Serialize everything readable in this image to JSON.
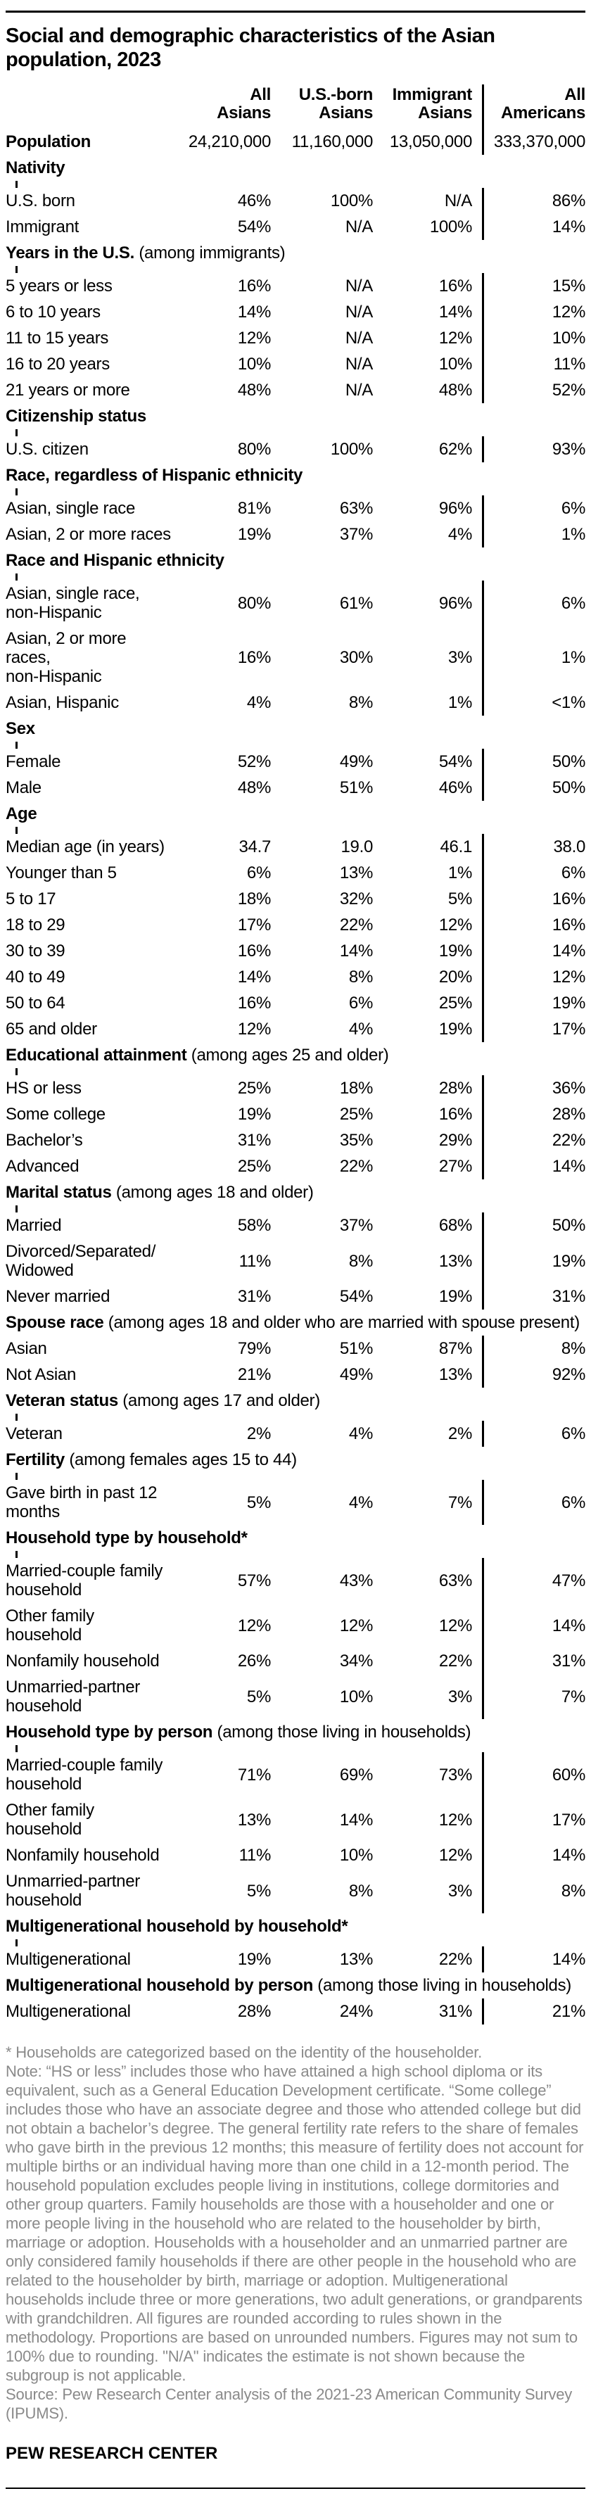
{
  "title": "Social and demographic characteristics of the Asian population, 2023",
  "colors": {
    "text": "#000000",
    "note_gray": "#8a8a8a",
    "divider": "#000000"
  },
  "chart_data": {
    "type": "table",
    "title": "Social and demographic characteristics of the Asian population, 2023",
    "columns": [
      "All Asians",
      "U.S.-born Asians",
      "Immigrant Asians",
      "All Americans"
    ],
    "column_header_lines": [
      "All\nAsians",
      "U.S.-born\nAsians",
      "Immigrant\nAsians",
      "All\nAmericans"
    ],
    "layout_hint": "fourth column separated by vertical black rule",
    "rows": [
      {
        "type": "data",
        "bold": true,
        "label": "Population",
        "values": [
          "24,210,000",
          "11,160,000",
          "13,050,000",
          "333,370,000"
        ]
      },
      {
        "type": "section",
        "label": "Nativity",
        "qualifier": ""
      },
      {
        "type": "data",
        "label": "U.S. born",
        "values": [
          "46%",
          "100%",
          "N/A",
          "86%"
        ]
      },
      {
        "type": "data",
        "label": "Immigrant",
        "values": [
          "54%",
          "N/A",
          "100%",
          "14%"
        ]
      },
      {
        "type": "section",
        "label": "Years in the U.S.",
        "qualifier": "(among immigrants)"
      },
      {
        "type": "data",
        "label": "5 years or less",
        "values": [
          "16%",
          "N/A",
          "16%",
          "15%"
        ]
      },
      {
        "type": "data",
        "label": "6 to 10 years",
        "values": [
          "14%",
          "N/A",
          "14%",
          "12%"
        ]
      },
      {
        "type": "data",
        "label": "11 to 15 years",
        "values": [
          "12%",
          "N/A",
          "12%",
          "10%"
        ]
      },
      {
        "type": "data",
        "label": "16 to 20 years",
        "values": [
          "10%",
          "N/A",
          "10%",
          "11%"
        ]
      },
      {
        "type": "data",
        "label": "21 years or more",
        "values": [
          "48%",
          "N/A",
          "48%",
          "52%"
        ]
      },
      {
        "type": "section",
        "label": "Citizenship status",
        "qualifier": ""
      },
      {
        "type": "data",
        "label": "U.S. citizen",
        "values": [
          "80%",
          "100%",
          "62%",
          "93%"
        ]
      },
      {
        "type": "section",
        "label": "Race, regardless of Hispanic ethnicity",
        "qualifier": ""
      },
      {
        "type": "data",
        "label": "Asian, single race",
        "values": [
          "81%",
          "63%",
          "96%",
          "6%"
        ]
      },
      {
        "type": "data",
        "label": "Asian, 2 or more races",
        "values": [
          "19%",
          "37%",
          "4%",
          "1%"
        ]
      },
      {
        "type": "section",
        "label": "Race and Hispanic ethnicity",
        "qualifier": ""
      },
      {
        "type": "data",
        "label": "Asian, single race,\nnon-Hispanic",
        "values": [
          "80%",
          "61%",
          "96%",
          "6%"
        ]
      },
      {
        "type": "data",
        "label": "Asian, 2 or more races,\nnon-Hispanic",
        "values": [
          "16%",
          "30%",
          "3%",
          "1%"
        ]
      },
      {
        "type": "data",
        "label": "Asian, Hispanic",
        "values": [
          "4%",
          "8%",
          "1%",
          "<1%"
        ]
      },
      {
        "type": "section",
        "label": "Sex",
        "qualifier": ""
      },
      {
        "type": "data",
        "label": "Female",
        "values": [
          "52%",
          "49%",
          "54%",
          "50%"
        ]
      },
      {
        "type": "data",
        "label": "Male",
        "values": [
          "48%",
          "51%",
          "46%",
          "50%"
        ]
      },
      {
        "type": "section",
        "label": "Age",
        "qualifier": ""
      },
      {
        "type": "data",
        "label": "Median age (in years)",
        "values": [
          "34.7",
          "19.0",
          "46.1",
          "38.0"
        ]
      },
      {
        "type": "data",
        "label": "Younger than 5",
        "values": [
          "6%",
          "13%",
          "1%",
          "6%"
        ]
      },
      {
        "type": "data",
        "label": "5 to 17",
        "values": [
          "18%",
          "32%",
          "5%",
          "16%"
        ]
      },
      {
        "type": "data",
        "label": "18 to 29",
        "values": [
          "17%",
          "22%",
          "12%",
          "16%"
        ]
      },
      {
        "type": "data",
        "label": "30 to 39",
        "values": [
          "16%",
          "14%",
          "19%",
          "14%"
        ]
      },
      {
        "type": "data",
        "label": "40 to 49",
        "values": [
          "14%",
          "8%",
          "20%",
          "12%"
        ]
      },
      {
        "type": "data",
        "label": "50 to 64",
        "values": [
          "16%",
          "6%",
          "25%",
          "19%"
        ]
      },
      {
        "type": "data",
        "label": "65 and older",
        "values": [
          "12%",
          "4%",
          "19%",
          "17%"
        ]
      },
      {
        "type": "section",
        "label": "Educational attainment",
        "qualifier": "(among ages 25 and older)"
      },
      {
        "type": "data",
        "label": "HS or less",
        "values": [
          "25%",
          "18%",
          "28%",
          "36%"
        ]
      },
      {
        "type": "data",
        "label": "Some college",
        "values": [
          "19%",
          "25%",
          "16%",
          "28%"
        ]
      },
      {
        "type": "data",
        "label": "Bachelor’s",
        "values": [
          "31%",
          "35%",
          "29%",
          "22%"
        ]
      },
      {
        "type": "data",
        "label": "Advanced",
        "values": [
          "25%",
          "22%",
          "27%",
          "14%"
        ]
      },
      {
        "type": "section",
        "label": "Marital status",
        "qualifier": "(among ages 18 and older)"
      },
      {
        "type": "data",
        "label": "Married",
        "values": [
          "58%",
          "37%",
          "68%",
          "50%"
        ]
      },
      {
        "type": "data",
        "label": "Divorced/Separated/\nWidowed",
        "values": [
          "11%",
          "8%",
          "13%",
          "19%"
        ]
      },
      {
        "type": "data",
        "label": "Never married",
        "values": [
          "31%",
          "54%",
          "19%",
          "31%"
        ]
      },
      {
        "type": "section-span",
        "label": "Spouse race",
        "qualifier": "(among ages 18 and older who are married with spouse present)"
      },
      {
        "type": "data",
        "label": "Asian",
        "values": [
          "79%",
          "51%",
          "87%",
          "8%"
        ]
      },
      {
        "type": "data",
        "label": "Not Asian",
        "values": [
          "21%",
          "49%",
          "13%",
          "92%"
        ]
      },
      {
        "type": "section",
        "label": "Veteran status",
        "qualifier": "(among ages 17 and older)"
      },
      {
        "type": "data",
        "label": "Veteran",
        "values": [
          "2%",
          "4%",
          "2%",
          "6%"
        ]
      },
      {
        "type": "section",
        "label": "Fertility",
        "qualifier": "(among females ages 15 to 44)"
      },
      {
        "type": "data",
        "label": "Gave birth in past 12\nmonths",
        "values": [
          "5%",
          "4%",
          "7%",
          "6%"
        ]
      },
      {
        "type": "section",
        "label": "Household type by household*",
        "qualifier": ""
      },
      {
        "type": "data",
        "label": "Married-couple family\nhousehold",
        "values": [
          "57%",
          "43%",
          "63%",
          "47%"
        ]
      },
      {
        "type": "data",
        "label": "Other family household",
        "values": [
          "12%",
          "12%",
          "12%",
          "14%"
        ]
      },
      {
        "type": "data",
        "label": "Nonfamily household",
        "values": [
          "26%",
          "34%",
          "22%",
          "31%"
        ]
      },
      {
        "type": "data",
        "label": "Unmarried-partner\nhousehold",
        "values": [
          "5%",
          "10%",
          "3%",
          "7%"
        ]
      },
      {
        "type": "section",
        "label": "Household type by person",
        "qualifier": "(among those living in households)"
      },
      {
        "type": "data",
        "label": "Married-couple family\nhousehold",
        "values": [
          "71%",
          "69%",
          "73%",
          "60%"
        ]
      },
      {
        "type": "data",
        "label": "Other family household",
        "values": [
          "13%",
          "14%",
          "12%",
          "17%"
        ]
      },
      {
        "type": "data",
        "label": "Nonfamily household",
        "values": [
          "11%",
          "10%",
          "12%",
          "14%"
        ]
      },
      {
        "type": "data",
        "label": "Unmarried-partner\nhousehold",
        "values": [
          "5%",
          "8%",
          "3%",
          "8%"
        ]
      },
      {
        "type": "section",
        "label": "Multigenerational household by household*",
        "qualifier": ""
      },
      {
        "type": "data",
        "label": "Multigenerational",
        "values": [
          "19%",
          "13%",
          "22%",
          "14%"
        ]
      },
      {
        "type": "section-span",
        "label": "Multigenerational household by person",
        "qualifier": "(among those living in households)"
      },
      {
        "type": "data",
        "label": "Multigenerational",
        "values": [
          "28%",
          "24%",
          "31%",
          "21%"
        ]
      }
    ]
  },
  "notes": {
    "footnote": "* Households are categorized based on the identity of the householder.",
    "note": "Note: “HS or less” includes those who have attained a high school diploma or its equivalent, such as a General Education Development certificate. “Some college” includes those who have an associate degree and those who attended college but did not obtain a bachelor’s degree. The general fertility rate refers to the share of females who gave birth in the previous 12 months; this measure of fertility does not account for multiple births or an individual having more than one child in a 12-month period. The household population excludes people living in institutions, college dormitories and other group quarters. Family households are those with a householder and one or more people living in the household who are related to the householder by birth, marriage or adoption. Households with a householder and an unmarried partner are only considered family households if there are other people in the household who are related to the householder by birth, marriage or adoption. Multigenerational households include three or more generations, two adult generations, or grandparents with grandchildren. All figures are rounded according to rules shown in the methodology. Proportions are based on unrounded numbers. Figures may not sum to 100% due to rounding. \"N/A\" indicates the estimate is not shown because the subgroup is not applicable.",
    "source": "Source: Pew Research Center analysis of the 2021-23 American Community Survey (IPUMS).",
    "brand": "PEW RESEARCH CENTER"
  }
}
